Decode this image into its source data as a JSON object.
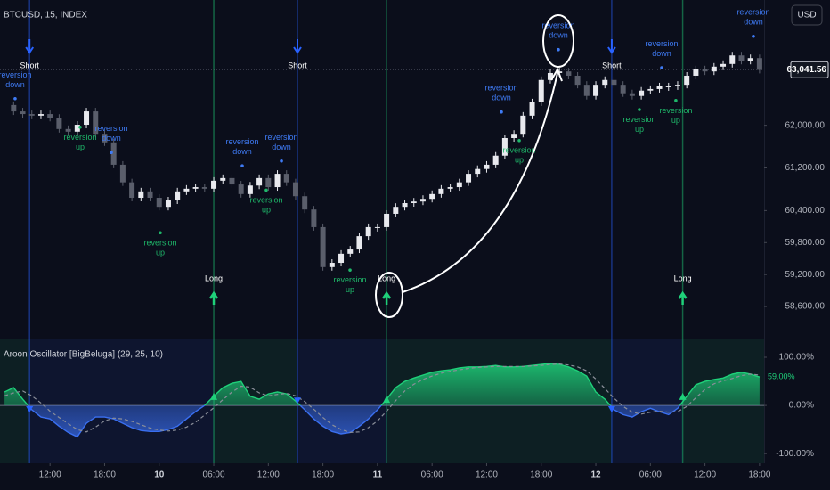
{
  "chart_data": {
    "type": "candlestick",
    "title": "BTCUSD, 15, INDEX",
    "currency": "USD",
    "xlim": [
      -0.5,
      83.5
    ],
    "xticks": [
      {
        "value": 5,
        "label": "12:00"
      },
      {
        "value": 11,
        "label": "18:00"
      },
      {
        "value": 17,
        "label": "10"
      },
      {
        "value": 23,
        "label": "06:00"
      },
      {
        "value": 29,
        "label": "12:00"
      },
      {
        "value": 35,
        "label": "18:00"
      },
      {
        "value": 41,
        "label": "11"
      },
      {
        "value": 47,
        "label": "06:00"
      },
      {
        "value": 53,
        "label": "12:00"
      },
      {
        "value": 59,
        "label": "18:00"
      },
      {
        "value": 65,
        "label": "12"
      },
      {
        "value": 71,
        "label": "06:00"
      },
      {
        "value": 77,
        "label": "12:00"
      },
      {
        "value": 83,
        "label": "18:00"
      }
    ],
    "ylim": [
      58000,
      64350
    ],
    "yticks": [
      {
        "value": 62000,
        "label": "62,000.00"
      },
      {
        "value": 61200,
        "label": "61,200.00"
      },
      {
        "value": 60400,
        "label": "60,400.00"
      },
      {
        "value": 59800,
        "label": "59,800.00"
      },
      {
        "value": 59200,
        "label": "59,200.00"
      },
      {
        "value": 58600,
        "label": "58,600.00"
      }
    ],
    "last_price": {
      "value": 63041.56,
      "label": "63,041.56"
    },
    "up_color": "#e8e9ee",
    "down_color": "#5a5e6b",
    "close": [
      62380,
      62260,
      62210,
      62180,
      62210,
      62140,
      61930,
      61880,
      62010,
      62260,
      61840,
      61680,
      61260,
      60930,
      60640,
      60760,
      60640,
      60470,
      60590,
      60760,
      60810,
      60840,
      60810,
      60960,
      61010,
      60890,
      60710,
      60870,
      61010,
      60840,
      61090,
      60930,
      60670,
      60420,
      60090,
      59340,
      59420,
      59590,
      59670,
      59920,
      60090,
      60090,
      60340,
      60470,
      60540,
      60570,
      60620,
      60710,
      60810,
      60840,
      60930,
      61090,
      61180,
      61260,
      61430,
      61760,
      61840,
      62180,
      62430,
      62850,
      62980,
      63010,
      62930,
      62760,
      62550,
      62760,
      62850,
      62760,
      62600,
      62550,
      62650,
      62680,
      62730,
      62730,
      62760,
      62930,
      63050,
      63010,
      63100,
      63150,
      63310,
      63210,
      63260,
      63040
    ],
    "short_signals": [
      {
        "label": "Short",
        "x": 2.75
      },
      {
        "label": "Short",
        "x": 32.2
      },
      {
        "label": "Short",
        "x": 66.75
      }
    ],
    "long_signals": [
      {
        "label": "Long",
        "x": 23
      },
      {
        "label": "Long",
        "x": 42
      },
      {
        "label": "Long",
        "x": 74.55
      }
    ],
    "short_color": "#2962ff",
    "long_color": "#1fd17a",
    "reversion_down": [
      {
        "text": "reversion down",
        "x": 1.16,
        "y": 62850
      },
      {
        "text": "reversion down",
        "x": 11.74,
        "y": 61840
      },
      {
        "text": "reversion down",
        "x": 26.13,
        "y": 61590
      },
      {
        "text": "reversion down",
        "x": 30.44,
        "y": 61680
      },
      {
        "text": "reversion down",
        "x": 54.62,
        "y": 62600
      },
      {
        "text": "reversion down",
        "x": 60.88,
        "y": 63770
      },
      {
        "text": "reversion down",
        "x": 72.24,
        "y": 63430
      },
      {
        "text": "reversion down",
        "x": 82.32,
        "y": 64020
      }
    ],
    "reversion_up": [
      {
        "text": "reversion up",
        "x": 8.31,
        "y": 61680
      },
      {
        "text": "reversion up",
        "x": 17.12,
        "y": 59700
      },
      {
        "text": "reversion up",
        "x": 28.77,
        "y": 60500
      },
      {
        "text": "reversion up",
        "x": 37.98,
        "y": 59000
      },
      {
        "text": "reversion up",
        "x": 56.58,
        "y": 61430
      },
      {
        "text": "reversion up",
        "x": 69.79,
        "y": 62010
      },
      {
        "text": "reversion up",
        "x": 73.8,
        "y": 62180
      }
    ],
    "oscillator": {
      "type": "line",
      "title": "Aroon Oscillator [BigBeluga] (29, 25, 10)",
      "ylim": [
        -120,
        137
      ],
      "yticks": [
        {
          "value": 100,
          "label": "100.00%"
        },
        {
          "value": 0,
          "label": "0.00%"
        },
        {
          "value": -100,
          "label": "-100.00%"
        }
      ],
      "last_value": {
        "value": 59,
        "label": "59.00%"
      },
      "series": [
        {
          "color": "#1fd17a",
          "neg_color": "#3a6ff0",
          "values": [
            28,
            37,
            13,
            -9,
            -24,
            -28,
            -43,
            -56,
            -65,
            -37,
            -24,
            -24,
            -28,
            -37,
            -46,
            -52,
            -54,
            -54,
            -50,
            -43,
            -28,
            -13,
            0,
            19,
            37,
            46,
            50,
            19,
            13,
            24,
            28,
            24,
            9,
            -9,
            -28,
            -43,
            -54,
            -59,
            -56,
            -43,
            -28,
            -9,
            13,
            37,
            50,
            57,
            63,
            69,
            72,
            74,
            78,
            80,
            80,
            81,
            83,
            80,
            80,
            81,
            83,
            85,
            87,
            85,
            80,
            72,
            61,
            28,
            13,
            -9,
            -19,
            -24,
            -13,
            -6,
            -13,
            -19,
            -6,
            19,
            43,
            50,
            54,
            57,
            65,
            69,
            65,
            59
          ]
        },
        {
          "color": "#8a8e99",
          "values": [
            20,
            26,
            30,
            20,
            5,
            -12,
            -25,
            -38,
            -50,
            -55,
            -45,
            -32,
            -26,
            -28,
            -33,
            -40,
            -47,
            -51,
            -53,
            -51,
            -45,
            -35,
            -20,
            -5,
            12,
            28,
            40,
            38,
            26,
            20,
            23,
            25,
            20,
            8,
            -8,
            -25,
            -40,
            -50,
            -56,
            -55,
            -46,
            -32,
            -12,
            10,
            30,
            44,
            54,
            61,
            67,
            71,
            74,
            77,
            79,
            80,
            81,
            81,
            81,
            81,
            82,
            83,
            85,
            86,
            84,
            80,
            72,
            55,
            35,
            15,
            -2,
            -14,
            -18,
            -14,
            -12,
            -14,
            -13,
            -2,
            16,
            33,
            45,
            51,
            56,
            62,
            65,
            63
          ]
        }
      ]
    }
  }
}
